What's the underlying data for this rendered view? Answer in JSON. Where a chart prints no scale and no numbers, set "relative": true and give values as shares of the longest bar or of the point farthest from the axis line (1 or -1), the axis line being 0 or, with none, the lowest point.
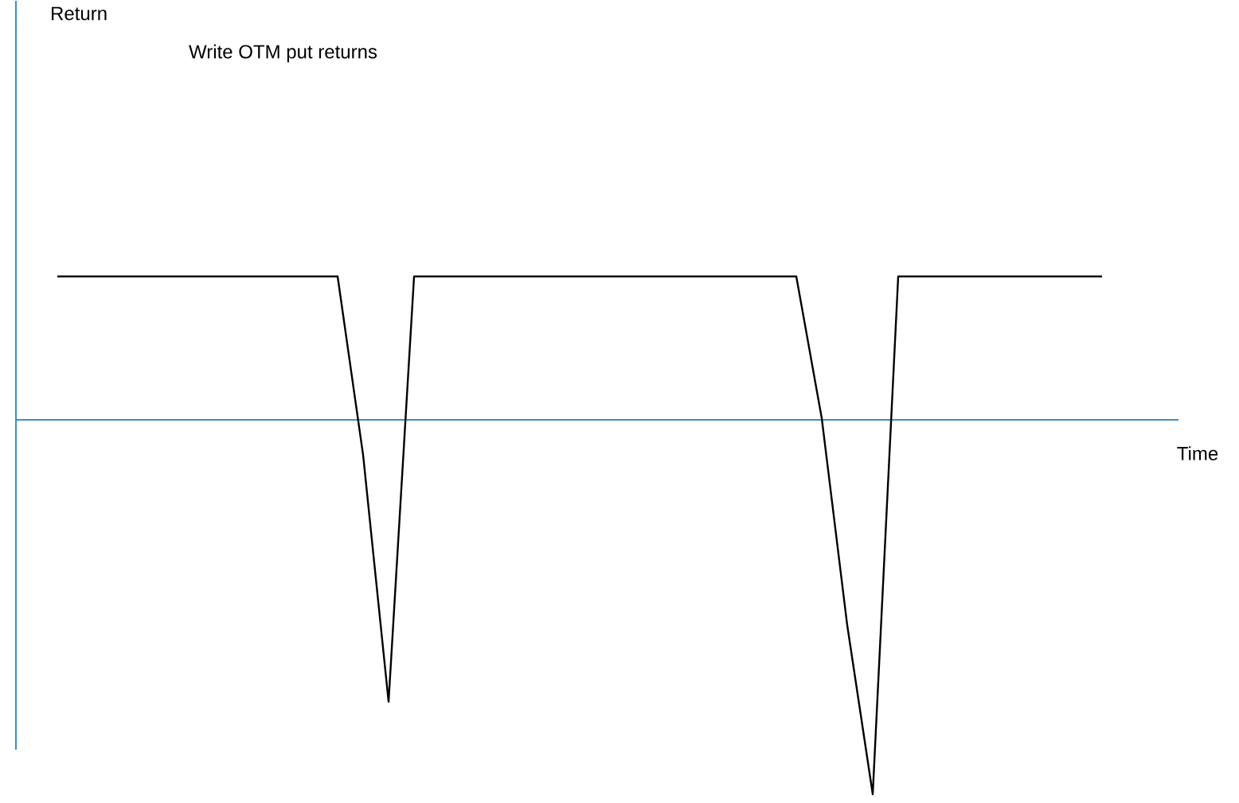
{
  "chart_data": {
    "type": "line",
    "relative": true,
    "title": "Write OTM put returns",
    "xlabel": "Time",
    "annotations": [
      "Return"
    ],
    "ref_lines": [
      {
        "axis": "y",
        "value": 0,
        "color": "#3a8ed0"
      }
    ],
    "categories": [
      null,
      null,
      null,
      null,
      null,
      null,
      null,
      null,
      null,
      null,
      null,
      null,
      null,
      null,
      null,
      null,
      null,
      null,
      null,
      null,
      null,
      null,
      null,
      null,
      null,
      null,
      null,
      null,
      null,
      null,
      null,
      null,
      null,
      null,
      null,
      null,
      null,
      null,
      null,
      null,
      null,
      null
    ],
    "series": [
      {
        "color": "#000000",
        "values": [
          0.383,
          0.383,
          0.383,
          0.383,
          0.383,
          0.383,
          0.383,
          0.383,
          0.383,
          0.383,
          0.383,
          0.383,
          -0.094,
          -0.753,
          0.383,
          0.383,
          0.383,
          0.383,
          0.383,
          0.383,
          0.383,
          0.383,
          0.383,
          0.383,
          0.383,
          0.383,
          0.383,
          0.383,
          0.383,
          0.383,
          0.004,
          -0.549,
          -1,
          0.383,
          0.383,
          0.383,
          0.383,
          0.383,
          0.383,
          0.383,
          0.383,
          0.383
        ]
      }
    ],
    "marker": "none",
    "line_style": "solid"
  }
}
